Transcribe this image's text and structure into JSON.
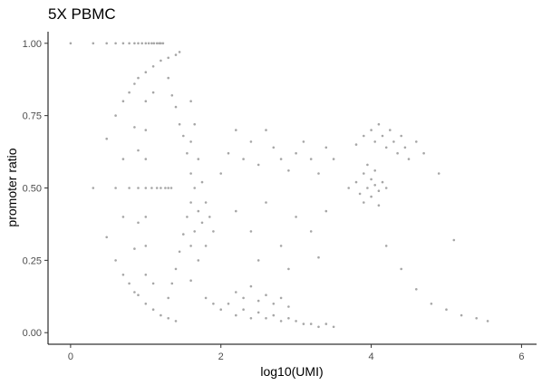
{
  "chart_data": {
    "type": "scatter",
    "title": "5X PBMC",
    "xlabel": "log10(UMI)",
    "ylabel": "promoter ratio",
    "xlim": [
      -0.3,
      6.2
    ],
    "ylim": [
      -0.04,
      1.04
    ],
    "x_ticks": [
      0,
      2,
      4,
      6
    ],
    "y_ticks": [
      0.0,
      0.25,
      0.5,
      0.75,
      1.0
    ],
    "x_tick_labels": [
      "0",
      "2",
      "4",
      "6"
    ],
    "y_tick_labels": [
      "0.00",
      "0.25",
      "0.50",
      "0.75",
      "1.00"
    ],
    "grid": false,
    "legend": "none",
    "point_color": "#a6a6a6",
    "series": [
      {
        "points": [
          [
            0.0,
            1.0
          ],
          [
            0.3,
            1.0
          ],
          [
            0.48,
            1.0
          ],
          [
            0.6,
            1.0
          ],
          [
            0.7,
            1.0
          ],
          [
            0.78,
            1.0
          ],
          [
            0.85,
            1.0
          ],
          [
            0.9,
            1.0
          ],
          [
            0.95,
            1.0
          ],
          [
            1.0,
            1.0
          ],
          [
            1.04,
            1.0
          ],
          [
            1.08,
            1.0
          ],
          [
            1.11,
            1.0
          ],
          [
            1.15,
            1.0
          ],
          [
            1.18,
            1.0
          ],
          [
            1.2,
            1.0
          ],
          [
            1.23,
            1.0
          ],
          [
            0.3,
            0.5
          ],
          [
            0.6,
            0.5
          ],
          [
            0.78,
            0.5
          ],
          [
            0.9,
            0.5
          ],
          [
            1.0,
            0.5
          ],
          [
            1.08,
            0.5
          ],
          [
            1.15,
            0.5
          ],
          [
            1.2,
            0.5
          ],
          [
            1.26,
            0.5
          ],
          [
            1.3,
            0.5
          ],
          [
            1.34,
            0.5
          ],
          [
            0.48,
            0.67
          ],
          [
            0.48,
            0.33
          ],
          [
            0.6,
            0.75
          ],
          [
            0.6,
            0.25
          ],
          [
            0.7,
            0.8
          ],
          [
            0.7,
            0.6
          ],
          [
            0.7,
            0.4
          ],
          [
            0.7,
            0.2
          ],
          [
            0.78,
            0.83
          ],
          [
            0.78,
            0.17
          ],
          [
            0.85,
            0.86
          ],
          [
            0.85,
            0.71
          ],
          [
            0.85,
            0.29
          ],
          [
            0.85,
            0.14
          ],
          [
            0.9,
            0.88
          ],
          [
            0.9,
            0.63
          ],
          [
            0.9,
            0.38
          ],
          [
            0.9,
            0.13
          ],
          [
            1.0,
            0.9
          ],
          [
            1.0,
            0.8
          ],
          [
            1.0,
            0.7
          ],
          [
            1.0,
            0.6
          ],
          [
            1.0,
            0.4
          ],
          [
            1.0,
            0.3
          ],
          [
            1.0,
            0.2
          ],
          [
            1.0,
            0.1
          ],
          [
            1.1,
            0.92
          ],
          [
            1.1,
            0.83
          ],
          [
            1.1,
            0.17
          ],
          [
            1.1,
            0.08
          ],
          [
            1.2,
            0.94
          ],
          [
            1.2,
            0.06
          ],
          [
            1.3,
            0.95
          ],
          [
            1.3,
            0.05
          ],
          [
            1.4,
            0.96
          ],
          [
            1.4,
            0.04
          ],
          [
            1.45,
            0.97
          ],
          [
            1.3,
            0.88
          ],
          [
            1.35,
            0.82
          ],
          [
            1.4,
            0.78
          ],
          [
            1.45,
            0.72
          ],
          [
            1.5,
            0.68
          ],
          [
            1.55,
            0.62
          ],
          [
            1.3,
            0.12
          ],
          [
            1.35,
            0.17
          ],
          [
            1.4,
            0.22
          ],
          [
            1.45,
            0.28
          ],
          [
            1.5,
            0.34
          ],
          [
            1.55,
            0.4
          ],
          [
            1.6,
            0.8
          ],
          [
            1.6,
            0.66
          ],
          [
            1.6,
            0.55
          ],
          [
            1.6,
            0.45
          ],
          [
            1.6,
            0.3
          ],
          [
            1.6,
            0.18
          ],
          [
            1.65,
            0.72
          ],
          [
            1.65,
            0.5
          ],
          [
            1.65,
            0.35
          ],
          [
            1.7,
            0.6
          ],
          [
            1.7,
            0.42
          ],
          [
            1.7,
            0.25
          ],
          [
            1.75,
            0.52
          ],
          [
            1.75,
            0.38
          ],
          [
            1.8,
            0.45
          ],
          [
            1.8,
            0.3
          ],
          [
            1.85,
            0.4
          ],
          [
            1.9,
            0.35
          ],
          [
            1.8,
            0.12
          ],
          [
            1.9,
            0.1
          ],
          [
            2.0,
            0.08
          ],
          [
            2.1,
            0.1
          ],
          [
            2.2,
            0.06
          ],
          [
            2.3,
            0.08
          ],
          [
            2.4,
            0.05
          ],
          [
            2.5,
            0.07
          ],
          [
            2.6,
            0.05
          ],
          [
            2.7,
            0.06
          ],
          [
            2.8,
            0.04
          ],
          [
            2.9,
            0.05
          ],
          [
            3.0,
            0.04
          ],
          [
            3.1,
            0.03
          ],
          [
            3.2,
            0.03
          ],
          [
            3.3,
            0.02
          ],
          [
            3.4,
            0.03
          ],
          [
            3.5,
            0.02
          ],
          [
            2.2,
            0.14
          ],
          [
            2.3,
            0.12
          ],
          [
            2.4,
            0.16
          ],
          [
            2.5,
            0.11
          ],
          [
            2.6,
            0.13
          ],
          [
            2.7,
            0.1
          ],
          [
            2.8,
            0.12
          ],
          [
            2.9,
            0.09
          ],
          [
            2.0,
            0.55
          ],
          [
            2.1,
            0.62
          ],
          [
            2.2,
            0.7
          ],
          [
            2.3,
            0.6
          ],
          [
            2.4,
            0.66
          ],
          [
            2.5,
            0.58
          ],
          [
            2.6,
            0.7
          ],
          [
            2.7,
            0.64
          ],
          [
            2.8,
            0.6
          ],
          [
            2.9,
            0.56
          ],
          [
            3.0,
            0.62
          ],
          [
            3.1,
            0.66
          ],
          [
            3.2,
            0.6
          ],
          [
            3.3,
            0.55
          ],
          [
            3.4,
            0.64
          ],
          [
            3.5,
            0.6
          ],
          [
            2.2,
            0.42
          ],
          [
            2.4,
            0.35
          ],
          [
            2.6,
            0.45
          ],
          [
            2.8,
            0.3
          ],
          [
            3.0,
            0.4
          ],
          [
            3.2,
            0.35
          ],
          [
            3.4,
            0.42
          ],
          [
            2.5,
            0.25
          ],
          [
            2.9,
            0.22
          ],
          [
            3.3,
            0.26
          ],
          [
            3.7,
            0.5
          ],
          [
            3.8,
            0.52
          ],
          [
            3.85,
            0.48
          ],
          [
            3.9,
            0.55
          ],
          [
            3.95,
            0.5
          ],
          [
            4.0,
            0.53
          ],
          [
            4.0,
            0.47
          ],
          [
            4.05,
            0.51
          ],
          [
            4.1,
            0.49
          ],
          [
            4.15,
            0.52
          ],
          [
            4.2,
            0.5
          ],
          [
            3.9,
            0.45
          ],
          [
            4.1,
            0.44
          ],
          [
            3.95,
            0.58
          ],
          [
            4.05,
            0.56
          ],
          [
            3.8,
            0.65
          ],
          [
            3.9,
            0.68
          ],
          [
            4.0,
            0.7
          ],
          [
            4.05,
            0.66
          ],
          [
            4.1,
            0.72
          ],
          [
            4.15,
            0.68
          ],
          [
            4.2,
            0.64
          ],
          [
            4.25,
            0.7
          ],
          [
            4.3,
            0.66
          ],
          [
            4.35,
            0.62
          ],
          [
            4.4,
            0.68
          ],
          [
            4.45,
            0.64
          ],
          [
            4.5,
            0.6
          ],
          [
            4.6,
            0.66
          ],
          [
            4.7,
            0.62
          ],
          [
            4.2,
            0.3
          ],
          [
            4.4,
            0.22
          ],
          [
            4.6,
            0.15
          ],
          [
            4.8,
            0.1
          ],
          [
            5.0,
            0.08
          ],
          [
            5.2,
            0.06
          ],
          [
            5.4,
            0.05
          ],
          [
            5.55,
            0.04
          ],
          [
            5.1,
            0.32
          ],
          [
            4.9,
            0.55
          ]
        ]
      }
    ]
  }
}
